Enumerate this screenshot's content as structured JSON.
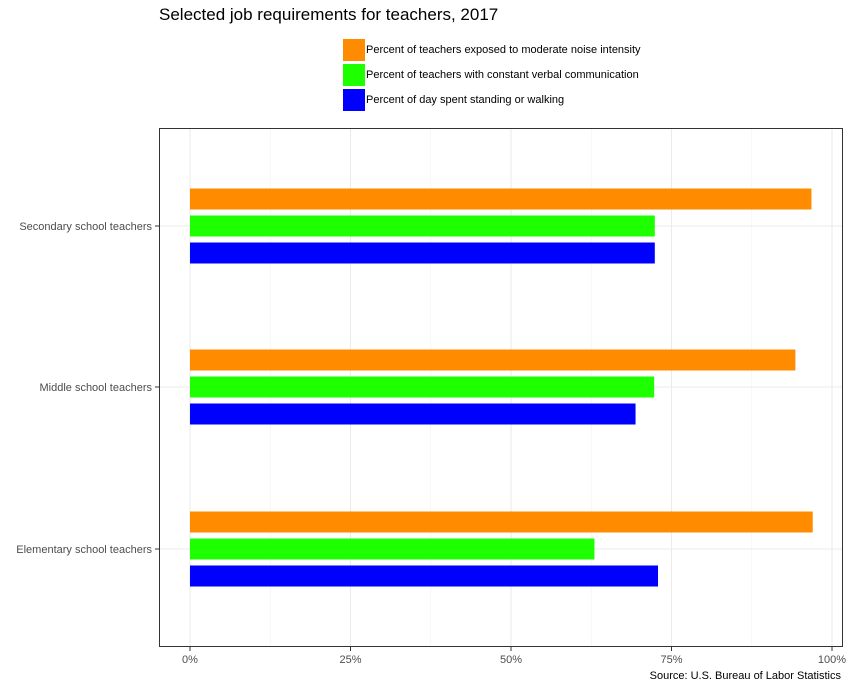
{
  "chart_data": {
    "type": "bar",
    "orientation": "horizontal",
    "title": "Selected job requirements for teachers, 2017",
    "caption": "Source: U.S. Bureau of Labor Statistics",
    "categories": [
      "Secondary school teachers",
      "Middle school teachers",
      "Elementary school teachers"
    ],
    "series": [
      {
        "name": "Percent of teachers exposed to moderate noise intensity",
        "color": "#FF8C00",
        "values": [
          96.8,
          94.3,
          97.0
        ]
      },
      {
        "name": "Percent of teachers with constant verbal communication",
        "color": "#1EFF00",
        "values": [
          72.4,
          72.3,
          63.0
        ]
      },
      {
        "name": "Percent of day spent standing or walking",
        "color": "#0000FF",
        "values": [
          72.4,
          69.4,
          72.9
        ]
      }
    ],
    "x_ticks": [
      "0%",
      "25%",
      "50%",
      "75%",
      "100%"
    ],
    "xlim": [
      0,
      100
    ],
    "grid": true,
    "legend_position": "top"
  }
}
